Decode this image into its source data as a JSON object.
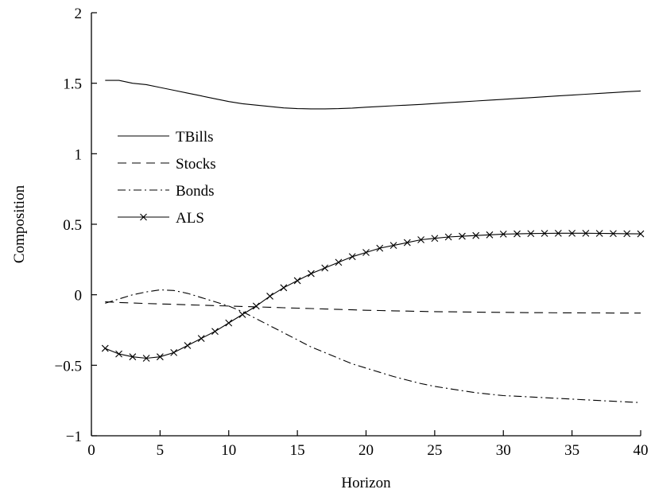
{
  "chart_data": {
    "type": "line",
    "title": "",
    "xlabel": "Horizon",
    "ylabel": "Composition",
    "xlim": [
      0,
      40
    ],
    "ylim": [
      -1,
      2
    ],
    "xticks": [
      0,
      5,
      10,
      15,
      20,
      25,
      30,
      35,
      40
    ],
    "xtick_labels": [
      "0",
      "5",
      "10",
      "15",
      "20",
      "25",
      "30",
      "35",
      "40"
    ],
    "yticks": [
      -1,
      -0.5,
      0,
      0.5,
      1,
      1.5,
      2
    ],
    "ytick_labels": [
      "−1",
      "−0.5",
      "0",
      "0.5",
      "1",
      "1.5",
      "2"
    ],
    "grid": false,
    "legend_position": "left, upper-middle",
    "x": [
      1,
      2,
      3,
      4,
      5,
      6,
      7,
      8,
      9,
      10,
      11,
      12,
      13,
      14,
      15,
      16,
      17,
      18,
      19,
      20,
      21,
      22,
      23,
      24,
      25,
      26,
      27,
      28,
      29,
      30,
      31,
      32,
      33,
      34,
      35,
      36,
      37,
      38,
      39,
      40
    ],
    "series": [
      {
        "name": "TBills",
        "style": "solid",
        "marker": "none",
        "values": [
          1.52,
          1.52,
          1.5,
          1.49,
          1.47,
          1.45,
          1.43,
          1.41,
          1.39,
          1.37,
          1.355,
          1.345,
          1.335,
          1.325,
          1.32,
          1.318,
          1.318,
          1.32,
          1.324,
          1.33,
          1.335,
          1.34,
          1.345,
          1.35,
          1.356,
          1.362,
          1.368,
          1.374,
          1.38,
          1.386,
          1.392,
          1.398,
          1.404,
          1.41,
          1.416,
          1.422,
          1.428,
          1.434,
          1.44,
          1.445
        ]
      },
      {
        "name": "Stocks",
        "style": "dashed",
        "marker": "none",
        "values": [
          -0.05,
          -0.055,
          -0.058,
          -0.062,
          -0.065,
          -0.068,
          -0.071,
          -0.074,
          -0.077,
          -0.08,
          -0.083,
          -0.086,
          -0.089,
          -0.092,
          -0.095,
          -0.098,
          -0.101,
          -0.104,
          -0.107,
          -0.11,
          -0.112,
          -0.114,
          -0.116,
          -0.118,
          -0.12,
          -0.121,
          -0.122,
          -0.123,
          -0.124,
          -0.125,
          -0.126,
          -0.127,
          -0.127,
          -0.128,
          -0.128,
          -0.129,
          -0.129,
          -0.13,
          -0.13,
          -0.13
        ]
      },
      {
        "name": "Bonds",
        "style": "dash-dot",
        "marker": "none",
        "values": [
          -0.06,
          -0.03,
          0.0,
          0.02,
          0.035,
          0.03,
          0.01,
          -0.02,
          -0.05,
          -0.08,
          -0.12,
          -0.17,
          -0.22,
          -0.27,
          -0.32,
          -0.37,
          -0.41,
          -0.45,
          -0.49,
          -0.52,
          -0.55,
          -0.58,
          -0.605,
          -0.63,
          -0.65,
          -0.665,
          -0.68,
          -0.695,
          -0.705,
          -0.715,
          -0.72,
          -0.725,
          -0.73,
          -0.735,
          -0.74,
          -0.745,
          -0.75,
          -0.755,
          -0.76,
          -0.765
        ]
      },
      {
        "name": "ALS",
        "style": "solid",
        "marker": "x",
        "values": [
          -0.38,
          -0.42,
          -0.44,
          -0.45,
          -0.44,
          -0.41,
          -0.36,
          -0.31,
          -0.26,
          -0.2,
          -0.14,
          -0.08,
          -0.01,
          0.05,
          0.1,
          0.15,
          0.19,
          0.23,
          0.27,
          0.3,
          0.33,
          0.35,
          0.37,
          0.39,
          0.4,
          0.41,
          0.415,
          0.42,
          0.425,
          0.43,
          0.432,
          0.434,
          0.435,
          0.436,
          0.436,
          0.436,
          0.435,
          0.434,
          0.433,
          0.432
        ]
      }
    ]
  }
}
